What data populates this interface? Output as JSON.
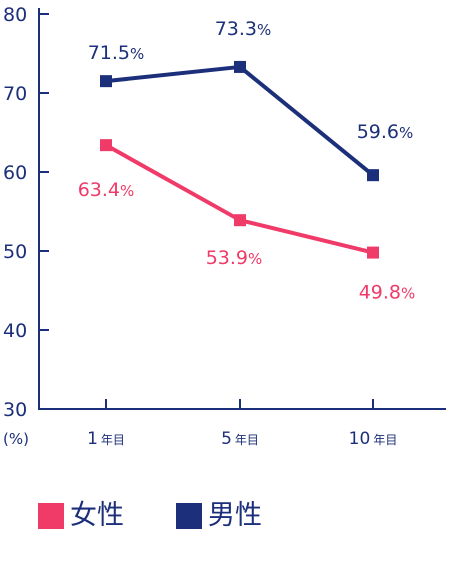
{
  "chart_data": {
    "type": "line",
    "categories": [
      {
        "num": "1",
        "suffix": "年目"
      },
      {
        "num": "5",
        "suffix": "年目"
      },
      {
        "num": "10",
        "suffix": "年目"
      }
    ],
    "series": [
      {
        "name": "女性",
        "key": "female",
        "color": "#f03a68",
        "values": [
          63.4,
          53.9,
          49.8
        ],
        "labels": [
          {
            "num": "63.4",
            "pct": "%"
          },
          {
            "num": "53.9",
            "pct": "%"
          },
          {
            "num": "49.8",
            "pct": "%"
          }
        ]
      },
      {
        "name": "男性",
        "key": "male",
        "color": "#1c2f7a",
        "values": [
          71.5,
          73.3,
          59.6
        ],
        "labels": [
          {
            "num": "71.5",
            "pct": "%"
          },
          {
            "num": "73.3",
            "pct": "%"
          },
          {
            "num": "59.6",
            "pct": "%"
          }
        ]
      }
    ],
    "y_ticks": [
      "80",
      "70",
      "60",
      "50",
      "40",
      "30"
    ],
    "y_unit": "(%)",
    "ylim": [
      30,
      80
    ],
    "grid": false,
    "legend_placement": "bottom-left",
    "axis_color": "#1c2f7a"
  }
}
